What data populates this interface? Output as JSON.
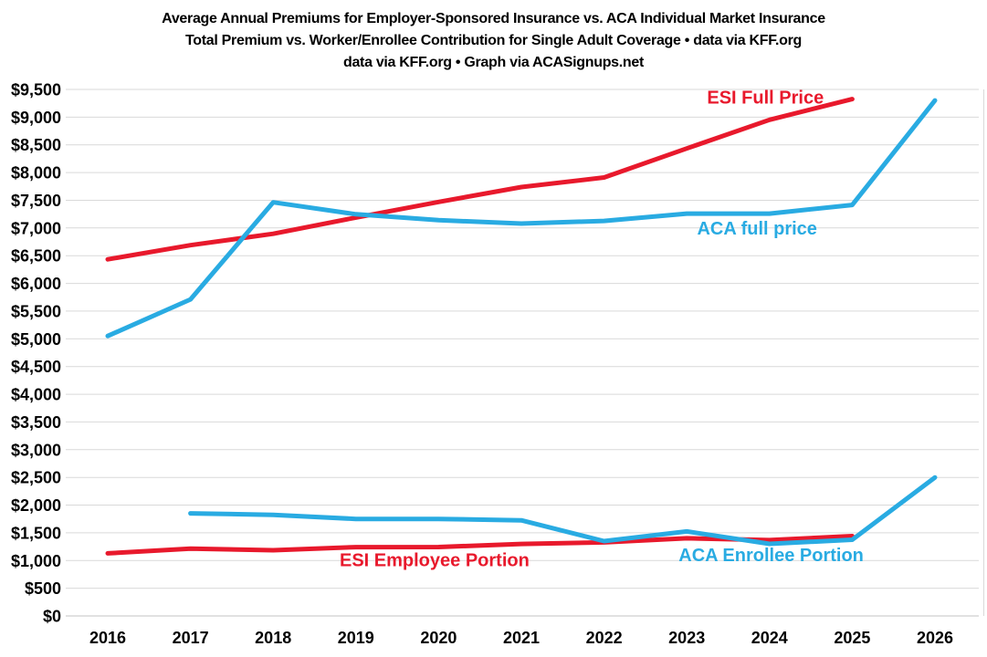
{
  "colors": {
    "esi_red": "#e8192c",
    "aca_blue": "#29abe2",
    "gridline": "#d9d9d9",
    "axis_line": "#c3c3c3",
    "text": "#000000",
    "background": "#ffffff"
  },
  "chart_data": {
    "type": "line",
    "title_lines": [
      "Average Annual Premiums for Employer-Sponsored Insurance vs. ACA Individual Market Insurance",
      "Total Premium vs. Worker/Enrollee Contribution for Single Adult Coverage • data via KFF.org",
      "data via KFF.org • Graph via ACASignups.net"
    ],
    "xlabel": "",
    "ylabel": "",
    "x": [
      2016,
      2017,
      2018,
      2019,
      2020,
      2021,
      2022,
      2023,
      2024,
      2025,
      2026
    ],
    "ylim": [
      0,
      9500
    ],
    "ytick_step": 500,
    "ytick_prefix": "$",
    "grid": true,
    "legend": "inline-labels",
    "series": [
      {
        "name": "ESI Full Price",
        "slug": "esi-full-price",
        "color_key": "esi_red",
        "values": [
          6435,
          6690,
          6896,
          7188,
          7470,
          7739,
          7911,
          8435,
          8951,
          9325,
          null
        ],
        "label": {
          "text": "ESI Full Price",
          "x": 2023.95,
          "y": 9360
        }
      },
      {
        "name": "ACA full price",
        "slug": "aca-full-price",
        "color_key": "aca_blue",
        "values": [
          5052,
          5712,
          7464,
          7248,
          7140,
          7080,
          7128,
          7260,
          7260,
          7416,
          9300
        ],
        "label": {
          "text": "ACA full price",
          "x": 2023.85,
          "y": 7000
        }
      },
      {
        "name": "ESI Employee Portion",
        "slug": "esi-employee-portion",
        "color_key": "esi_red",
        "values": [
          1129,
          1213,
          1186,
          1242,
          1243,
          1299,
          1327,
          1401,
          1368,
          1440,
          null
        ],
        "label": {
          "text": "ESI Employee Portion",
          "x": 2019.95,
          "y": 1010
        }
      },
      {
        "name": "ACA Enrollee Portion",
        "slug": "aca-enrollee-portion",
        "color_key": "aca_blue",
        "values": [
          null,
          1850,
          1825,
          1750,
          1750,
          1725,
          1350,
          1525,
          1300,
          1375,
          2500
        ],
        "label": {
          "text": "ACA Enrollee Portion",
          "x": 2024.02,
          "y": 1100
        }
      }
    ]
  }
}
